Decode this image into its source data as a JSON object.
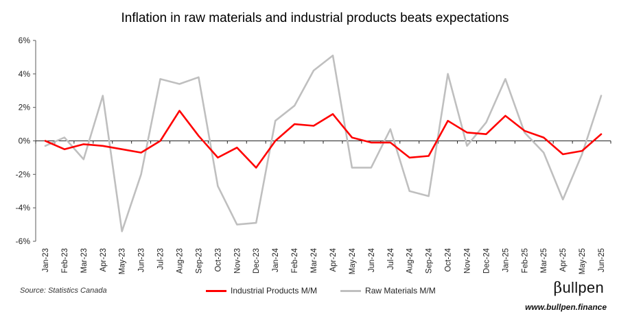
{
  "chart_data": {
    "type": "line",
    "title": "Inflation in raw materials and industrial products beats expectations",
    "x": [
      "Jan-23",
      "Feb-23",
      "Mar-23",
      "Apr-23",
      "May-23",
      "Jun-23",
      "Jul-23",
      "Aug-23",
      "Sep-23",
      "Oct-23",
      "Nov-23",
      "Dec-23",
      "Jan-24",
      "Feb-24",
      "Mar-24",
      "Apr-24",
      "May-24",
      "Jun-24",
      "Jul-24",
      "Aug-24",
      "Sep-24",
      "Oct-24",
      "Nov-24",
      "Dec-24",
      "Jan-25",
      "Feb-25",
      "Mar-25",
      "Apr-25",
      "May-25",
      "Jun-25"
    ],
    "yticks": [
      "6%",
      "4%",
      "2%",
      "0%",
      "-2%",
      "-4%",
      "-6%"
    ],
    "ylim": [
      -6,
      6
    ],
    "grid": false,
    "legend_position": "bottom",
    "series": [
      {
        "name": "Industrial Products M/M",
        "color": "#ff0000",
        "values": [
          0.0,
          -0.5,
          -0.2,
          -0.3,
          -0.5,
          -0.7,
          0.0,
          1.8,
          0.3,
          -1.0,
          -0.4,
          -1.6,
          0.0,
          1.0,
          0.9,
          1.6,
          0.2,
          -0.1,
          -0.1,
          -1.0,
          -0.9,
          1.2,
          0.5,
          0.4,
          1.5,
          0.6,
          0.2,
          -0.8,
          -0.6,
          0.4
        ]
      },
      {
        "name": "Raw Materials M/M",
        "color": "#bfbfbf",
        "values": [
          -0.3,
          0.2,
          -1.1,
          2.7,
          -5.4,
          -2.0,
          3.7,
          3.4,
          3.8,
          -2.7,
          -5.0,
          -4.9,
          1.2,
          2.1,
          4.2,
          5.1,
          -1.6,
          -1.6,
          0.7,
          -3.0,
          -3.3,
          4.0,
          -0.3,
          1.1,
          3.7,
          0.5,
          -0.7,
          -3.5,
          -0.8,
          2.7
        ]
      }
    ]
  },
  "footer": {
    "source": "Source: Statistics Canada",
    "brand_beta": "β",
    "brand_rest": "ullpen",
    "site": "www.bullpen.finance"
  }
}
